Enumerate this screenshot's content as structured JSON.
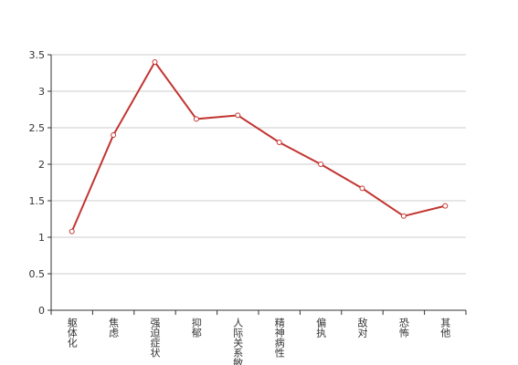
{
  "chart_data": {
    "type": "line",
    "categories": [
      "躯体化",
      "焦虑",
      "强迫症状",
      "抑郁",
      "人际关系敏感",
      "精神病性",
      "偏执",
      "敌对",
      "恐怖",
      "其他"
    ],
    "values": [
      1.08,
      2.4,
      3.4,
      2.62,
      2.67,
      2.3,
      2.0,
      1.67,
      1.29,
      1.43
    ],
    "color": "#c23531",
    "ylim": [
      0,
      3.5
    ],
    "yticks": [
      0,
      0.5,
      1,
      1.5,
      2,
      2.5,
      3,
      3.5
    ],
    "grid": true
  }
}
